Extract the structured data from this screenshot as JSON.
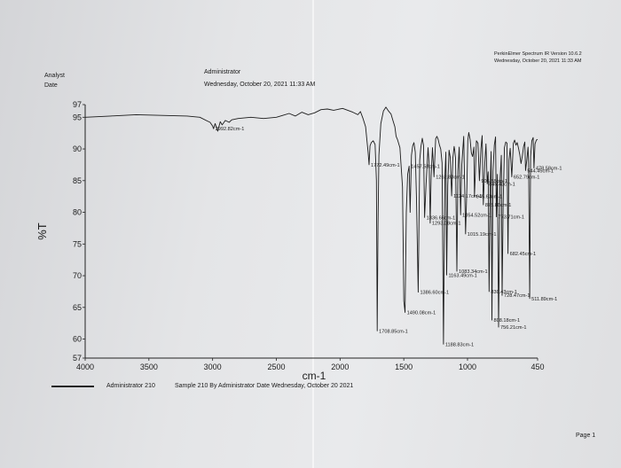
{
  "header": {
    "software_line": "PerkinElmer Spectrum IR Version 10.6.2",
    "date_line_right": "Wednesday, October 20, 2021 11:33 AM",
    "analyst_label": "Analyst",
    "date_label": "Date",
    "analyst_value": "Administrator",
    "date_value": "Wednesday, October 20, 2021 11:33 AM"
  },
  "footer": {
    "legend_text": "Administrator 210",
    "legend_desc": "Sample 210 By Administrator Date Wednesday, October 20 2021",
    "page_label": "Page 1"
  },
  "chart_data": {
    "type": "line",
    "xlabel": "cm-1",
    "ylabel": "%T",
    "xlim": [
      4000,
      450
    ],
    "ylim": [
      57,
      97
    ],
    "x_ticks": [
      "4000",
      "3500",
      "3000",
      "2500",
      "2000",
      "1500",
      "1000",
      "450"
    ],
    "x_tick_values": [
      4000,
      3500,
      3000,
      2500,
      2000,
      1500,
      1000,
      450
    ],
    "y_ticks": [
      "57",
      "60",
      "65",
      "70",
      "75",
      "80",
      "85",
      "90",
      "95",
      "97"
    ],
    "y_tick_values": [
      57,
      60,
      65,
      70,
      75,
      80,
      85,
      90,
      95,
      97
    ],
    "series": [
      {
        "x": [
          4000,
          3800,
          3600,
          3400,
          3200,
          3100,
          3040,
          3020,
          3000,
          2992.82,
          2980,
          2960,
          2940,
          2925,
          2900,
          2870,
          2850,
          2800,
          2700,
          2600,
          2500,
          2450,
          2400,
          2350,
          2300,
          2250,
          2200,
          2150,
          2100,
          2050,
          1980,
          1900,
          1860,
          1840,
          1820,
          1800,
          1790,
          1780,
          1772.49,
          1765,
          1755,
          1740,
          1725,
          1715,
          1708.85,
          1702,
          1695,
          1680,
          1660,
          1640,
          1620,
          1600,
          1585,
          1570,
          1560,
          1550,
          1530,
          1510,
          1500,
          1490.08,
          1480,
          1470,
          1457.58,
          1450,
          1440,
          1430,
          1420,
          1410,
          1400,
          1386.6,
          1375,
          1366,
          1355,
          1345,
          1336.66,
          1325,
          1310,
          1300,
          1293.08,
          1285,
          1275,
          1262.83,
          1250,
          1240,
          1230,
          1220,
          1210,
          1200,
          1188.83,
          1178,
          1170,
          1163.49,
          1155,
          1145,
          1135,
          1124.17,
          1115,
          1105,
          1100,
          1094,
          1083.34,
          1075,
          1065,
          1054.52,
          1045,
          1030,
          1015.19,
          1005,
          998,
          990,
          980,
          970,
          960,
          950,
          945.63,
          938,
          930,
          918,
          906.88,
          895,
          885,
          875.86,
          865,
          855,
          845.43,
          838,
          830.43,
          822,
          815,
          808.18,
          800,
          790,
          780,
          773.71,
          765,
          756.21,
          745,
          735,
          728.47,
          720,
          710,
          700,
          690,
          682.45,
          675,
          665,
          652.79,
          640,
          630,
          620,
          610,
          600,
          590,
          580,
          570,
          560,
          550,
          544.45,
          535,
          525,
          520,
          511.89,
          505,
          495,
          485,
          478.58,
          470,
          460,
          450
        ],
        "y": [
          95,
          95.2,
          95.4,
          95.3,
          95.2,
          95,
          94.4,
          94.2,
          93.6,
          93.2,
          94,
          92.8,
          94.3,
          93.8,
          94.5,
          94.2,
          94.6,
          94.8,
          95,
          94.8,
          95,
          95.3,
          95.6,
          95.2,
          95.8,
          95.4,
          95.7,
          96.2,
          96.3,
          96.1,
          96.4,
          95.8,
          95.4,
          95.9,
          94.8,
          93.5,
          91.5,
          89.5,
          87.5,
          90.5,
          91,
          91.3,
          90.7,
          85,
          61.3,
          78,
          89,
          94,
          96,
          96.6,
          96,
          95.5,
          94.5,
          93.5,
          92,
          91.5,
          90.2,
          84,
          66,
          64.2,
          80,
          86,
          87.3,
          80,
          89,
          90.5,
          91,
          89.5,
          82,
          67.4,
          88.2,
          90.3,
          91.7,
          90.6,
          79.2,
          84.5,
          90.2,
          87,
          78.3,
          85.7,
          90.2,
          85.6,
          91.6,
          92,
          91.5,
          90.6,
          90,
          87.8,
          59.2,
          85,
          89.5,
          70.1,
          84.3,
          89.8,
          88.6,
          82.6,
          88.6,
          90.4,
          89.8,
          88.5,
          70.7,
          86.5,
          90.3,
          79.6,
          87.4,
          92,
          76.6,
          84,
          91.3,
          92.6,
          91.5,
          89.4,
          88.8,
          90.3,
          82.5,
          86.5,
          91.3,
          90.9,
          85,
          90,
          92.1,
          81.2,
          87.5,
          90.8,
          84.5,
          86.4,
          67.5,
          84.2,
          89.6,
          63,
          86.5,
          90.6,
          91.9,
          79.3,
          86,
          61.9,
          85,
          89,
          66.9,
          81.5,
          90.2,
          91.1,
          90.9,
          73.5,
          88.2,
          90.1,
          85.6,
          90.9,
          91.4,
          90.6,
          91,
          90.1,
          89.1,
          87.7,
          88.9,
          90.4,
          91.1,
          86.6,
          88.2,
          90.3,
          87.6,
          66.4,
          88.8,
          91.3,
          91.8,
          87,
          90.8,
          91.4,
          91.5
        ]
      }
    ],
    "annotations": [
      {
        "x": 2992.82,
        "y": 93.2,
        "label": "2992.82cm-1"
      },
      {
        "x": 1772.49,
        "y": 87.5,
        "label": "1772.49cm-1"
      },
      {
        "x": 1708.85,
        "y": 61.3,
        "label": "1708.85cm-1"
      },
      {
        "x": 1490.08,
        "y": 64.2,
        "label": "1490.08cm-1"
      },
      {
        "x": 1457.58,
        "y": 87.3,
        "label": "1457.58cm-1"
      },
      {
        "x": 1386.6,
        "y": 67.4,
        "label": "1386.60cm-1"
      },
      {
        "x": 1336.66,
        "y": 79.2,
        "label": "1336.66cm-1"
      },
      {
        "x": 1293.08,
        "y": 78.3,
        "label": "1293.08cm-1"
      },
      {
        "x": 1262.83,
        "y": 85.6,
        "label": "1262.83cm-1"
      },
      {
        "x": 1188.83,
        "y": 59.2,
        "label": "1188.83cm-1"
      },
      {
        "x": 1163.49,
        "y": 70.1,
        "label": "1163.49cm-1"
      },
      {
        "x": 1124.17,
        "y": 82.6,
        "label": "1124.17cm-1"
      },
      {
        "x": 1083.34,
        "y": 70.7,
        "label": "1083.34cm-1"
      },
      {
        "x": 1054.52,
        "y": 79.6,
        "label": "1054.52cm-1"
      },
      {
        "x": 1015.19,
        "y": 76.6,
        "label": "1015.19cm-1"
      },
      {
        "x": 945.63,
        "y": 82.5,
        "label": "945.63cm-1"
      },
      {
        "x": 906.88,
        "y": 85,
        "label": "906.88cm-1"
      },
      {
        "x": 875.86,
        "y": 81.2,
        "label": "875.86cm-1"
      },
      {
        "x": 845.43,
        "y": 84.5,
        "label": "845.43cm-1"
      },
      {
        "x": 830.43,
        "y": 67.5,
        "label": "830.43cm-1"
      },
      {
        "x": 808.18,
        "y": 63,
        "label": "808.18cm-1"
      },
      {
        "x": 773.71,
        "y": 79.3,
        "label": "773.71cm-1"
      },
      {
        "x": 756.21,
        "y": 61.9,
        "label": "756.21cm-1"
      },
      {
        "x": 728.47,
        "y": 66.9,
        "label": "728.47cm-1"
      },
      {
        "x": 682.45,
        "y": 73.5,
        "label": "682.45cm-1"
      },
      {
        "x": 652.79,
        "y": 85.6,
        "label": "652.79cm-1"
      },
      {
        "x": 544.45,
        "y": 86.6,
        "label": "544.45cm-1"
      },
      {
        "x": 511.89,
        "y": 66.4,
        "label": "511.89cm-1"
      },
      {
        "x": 478.58,
        "y": 87,
        "label": "478.58cm-1"
      }
    ],
    "grid": false,
    "legend": "bottom-left"
  }
}
